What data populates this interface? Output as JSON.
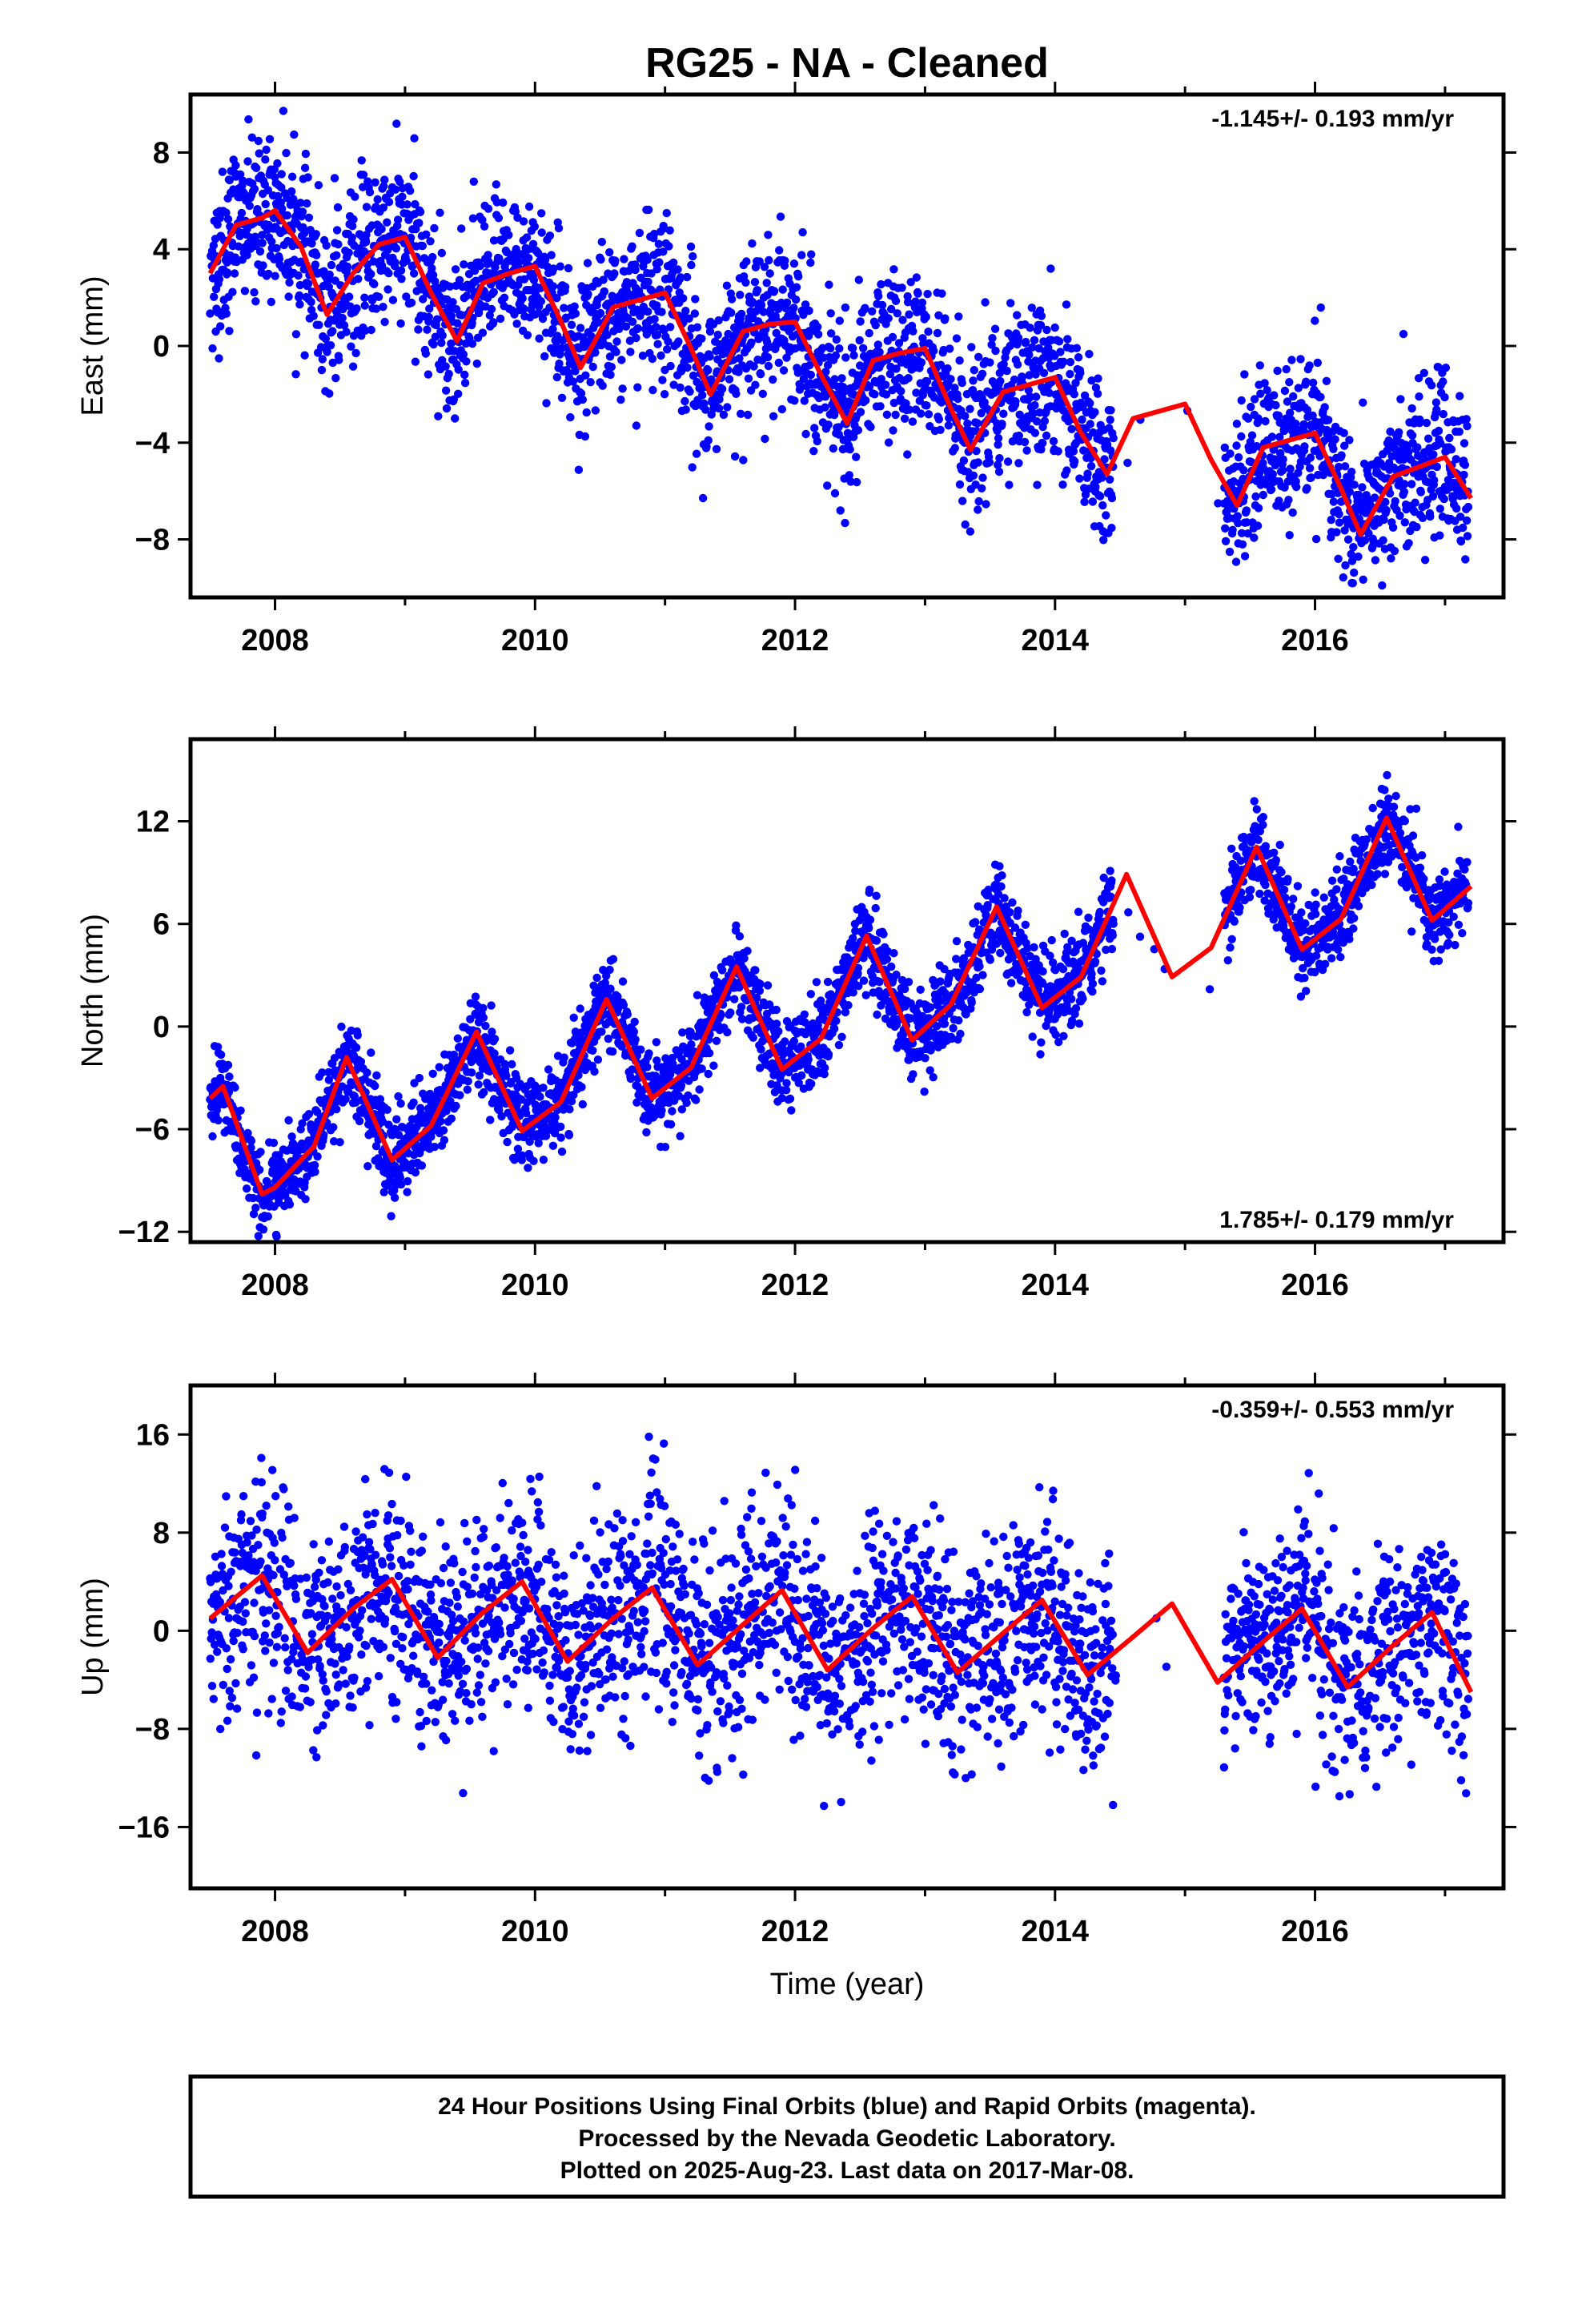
{
  "title": "RG25  - NA - Cleaned",
  "xlabel": "Time (year)",
  "colors": {
    "final": "#0000ff",
    "model": "#ff0000",
    "frame": "#000000"
  },
  "footer": {
    "line1": "24 Hour Positions Using Final Orbits (blue) and Rapid Orbits (magenta).",
    "line2": "Processed by the Nevada Geodetic Laboratory.",
    "line3": "Plotted on 2025-Aug-23. Last data on 2017-Mar-08."
  },
  "chart_data": [
    {
      "type": "scatter",
      "name": "east",
      "ylabel": "East (mm)",
      "rate_label": "-1.145+/- 0.193 mm/yr",
      "rate_position": "top-right",
      "xlim": [
        2007.35,
        2017.45
      ],
      "ylim": [
        -10.4,
        10.4
      ],
      "xticks": [
        2008,
        2010,
        2012,
        2014,
        2016
      ],
      "xticklabels": [
        "2008",
        "2010",
        "2012",
        "2014",
        "2016"
      ],
      "yticks": [
        8,
        4,
        0,
        -4,
        -8
      ],
      "yticklabels": [
        "8",
        "4",
        "0",
        "−4",
        "−8"
      ],
      "rate": -1.145,
      "rate_uncertainty": 0.193,
      "data_start": 2007.5,
      "data_end": 2017.18,
      "gaps": [
        [
          2014.45,
          2015.3
        ]
      ],
      "model": {
        "x": [
          2007.5,
          2007.7,
          2007.9,
          2008.0,
          2008.2,
          2008.4,
          2008.6,
          2008.8,
          2009.0,
          2009.2,
          2009.4,
          2009.6,
          2009.8,
          2010.0,
          2010.2,
          2010.35,
          2010.6,
          2010.8,
          2011.0,
          2011.2,
          2011.35,
          2011.6,
          2011.8,
          2012.0,
          2012.2,
          2012.4,
          2012.6,
          2012.8,
          2013.0,
          2013.2,
          2013.35,
          2013.6,
          2013.8,
          2014.0,
          2014.2,
          2014.4,
          2014.6,
          2014.8,
          2015.0,
          2015.2,
          2015.4,
          2015.6,
          2015.8,
          2016.0,
          2016.2,
          2016.35,
          2016.6,
          2016.8,
          2017.0,
          2017.2
        ],
        "y": [
          3.0,
          5.0,
          5.3,
          5.6,
          4.1,
          1.3,
          3.0,
          4.2,
          4.5,
          2.2,
          0.2,
          2.6,
          3.0,
          3.3,
          1.0,
          -0.9,
          1.6,
          1.9,
          2.2,
          -0.1,
          -2.0,
          0.6,
          0.9,
          1.0,
          -1.2,
          -3.2,
          -0.6,
          -0.3,
          -0.1,
          -2.6,
          -4.3,
          -1.9,
          -1.6,
          -1.3,
          -3.6,
          -5.3,
          -3.0,
          -2.7,
          -2.4,
          -4.7,
          -6.6,
          -4.2,
          -3.9,
          -3.6,
          -5.9,
          -7.8,
          -5.4,
          -5.0,
          -4.6,
          -6.3
        ]
      },
      "scatter": {
        "density": 0.95,
        "noise": 1.6
      }
    },
    {
      "type": "scatter",
      "name": "north",
      "ylabel": "North (mm)",
      "rate_label": "1.785+/- 0.179 mm/yr",
      "rate_position": "bottom-right",
      "xlim": [
        2007.35,
        2017.45
      ],
      "ylim": [
        -12.6,
        16.8
      ],
      "xticks": [
        2008,
        2010,
        2012,
        2014,
        2016
      ],
      "xticklabels": [
        "2008",
        "2010",
        "2012",
        "2014",
        "2016"
      ],
      "yticks": [
        12,
        6,
        0,
        -6,
        -12
      ],
      "yticklabels": [
        "12",
        "6",
        "0",
        "−6",
        "−12"
      ],
      "rate": 1.785,
      "rate_uncertainty": 0.179,
      "data_start": 2007.5,
      "data_end": 2017.18,
      "gaps": [
        [
          2014.45,
          2015.3
        ]
      ],
      "model": {
        "x": [
          2007.5,
          2007.6,
          2007.9,
          2008.0,
          2008.3,
          2008.55,
          2008.9,
          2009.2,
          2009.55,
          2009.9,
          2010.2,
          2010.55,
          2010.9,
          2011.2,
          2011.55,
          2011.9,
          2012.2,
          2012.55,
          2012.9,
          2013.2,
          2013.55,
          2013.9,
          2014.2,
          2014.55,
          2014.9,
          2015.2,
          2015.55,
          2015.9,
          2016.2,
          2016.55,
          2016.9,
          2017.2
        ],
        "y": [
          -4.2,
          -3.5,
          -9.8,
          -9.4,
          -7.0,
          -1.8,
          -7.8,
          -5.8,
          -0.3,
          -6.1,
          -4.4,
          1.6,
          -4.2,
          -2.4,
          3.5,
          -2.5,
          -0.7,
          5.3,
          -0.8,
          1.3,
          7.0,
          1.1,
          2.9,
          8.9,
          2.9,
          4.6,
          10.5,
          4.5,
          6.3,
          12.2,
          6.2,
          8.2
        ]
      },
      "scatter": {
        "density": 0.95,
        "noise": 1.25
      }
    },
    {
      "type": "scatter",
      "name": "up",
      "ylabel": "Up (mm)",
      "rate_label": "-0.359+/- 0.553 mm/yr",
      "rate_position": "top-right",
      "xlim": [
        2007.35,
        2017.45
      ],
      "ylim": [
        -21.0,
        20.0
      ],
      "xticks": [
        2008,
        2010,
        2012,
        2014,
        2016
      ],
      "xticklabels": [
        "2008",
        "2010",
        "2012",
        "2014",
        "2016"
      ],
      "yticks": [
        16,
        8,
        0,
        -8,
        -16
      ],
      "yticklabels": [
        "16",
        "8",
        "0",
        "−8",
        "−16"
      ],
      "rate": -0.359,
      "rate_uncertainty": 0.553,
      "data_start": 2007.5,
      "data_end": 2017.18,
      "gaps": [
        [
          2014.45,
          2015.3
        ]
      ],
      "model": {
        "x": [
          2007.5,
          2007.9,
          2008.25,
          2008.6,
          2008.9,
          2009.25,
          2009.6,
          2009.9,
          2010.25,
          2010.6,
          2010.9,
          2011.25,
          2011.6,
          2011.9,
          2012.25,
          2012.6,
          2012.9,
          2013.25,
          2013.6,
          2013.9,
          2014.25,
          2014.6,
          2014.9,
          2015.25,
          2015.6,
          2015.9,
          2016.25,
          2016.6,
          2016.9,
          2017.2
        ],
        "y": [
          1.0,
          4.5,
          -1.8,
          1.8,
          4.2,
          -2.2,
          1.5,
          4.0,
          -2.5,
          1.0,
          3.5,
          -2.8,
          0.5,
          3.3,
          -3.2,
          0.2,
          2.8,
          -3.4,
          -0.2,
          2.5,
          -3.6,
          -0.5,
          2.2,
          -4.2,
          -0.9,
          1.8,
          -4.6,
          -1.2,
          1.5,
          -5.0
        ]
      },
      "scatter": {
        "density": 0.8,
        "noise": 4.2
      }
    }
  ]
}
